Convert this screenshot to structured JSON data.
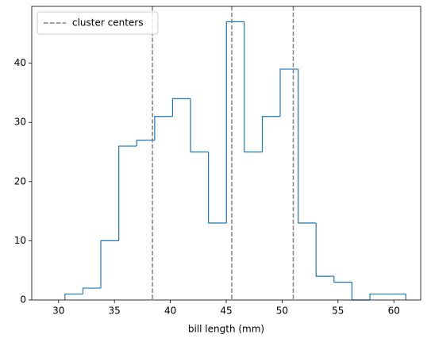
{
  "chart_data": {
    "type": "histogram",
    "histtype": "step",
    "xlabel": "bill length (mm)",
    "bins": [
      30.57,
      32.18,
      33.78,
      35.39,
      36.99,
      38.6,
      40.2,
      41.81,
      43.41,
      45.02,
      46.62,
      48.23,
      49.83,
      51.44,
      53.04,
      54.65,
      56.25,
      57.86,
      59.46,
      61.07
    ],
    "counts": [
      1,
      2,
      10,
      26,
      27,
      31,
      34,
      25,
      13,
      47,
      25,
      31,
      39,
      13,
      4,
      3,
      0,
      1,
      1
    ],
    "color": "#1f77b4",
    "vlines": {
      "name": "cluster centers",
      "values": [
        38.4,
        45.5,
        51.0
      ],
      "color": "#808080"
    },
    "xlim": [
      27.6,
      62.4
    ],
    "ylim": [
      0,
      49.6
    ],
    "xticks": [
      30,
      35,
      40,
      45,
      50,
      55,
      60
    ],
    "yticks": [
      0,
      10,
      20,
      30,
      40
    ],
    "legend": "upper left"
  }
}
